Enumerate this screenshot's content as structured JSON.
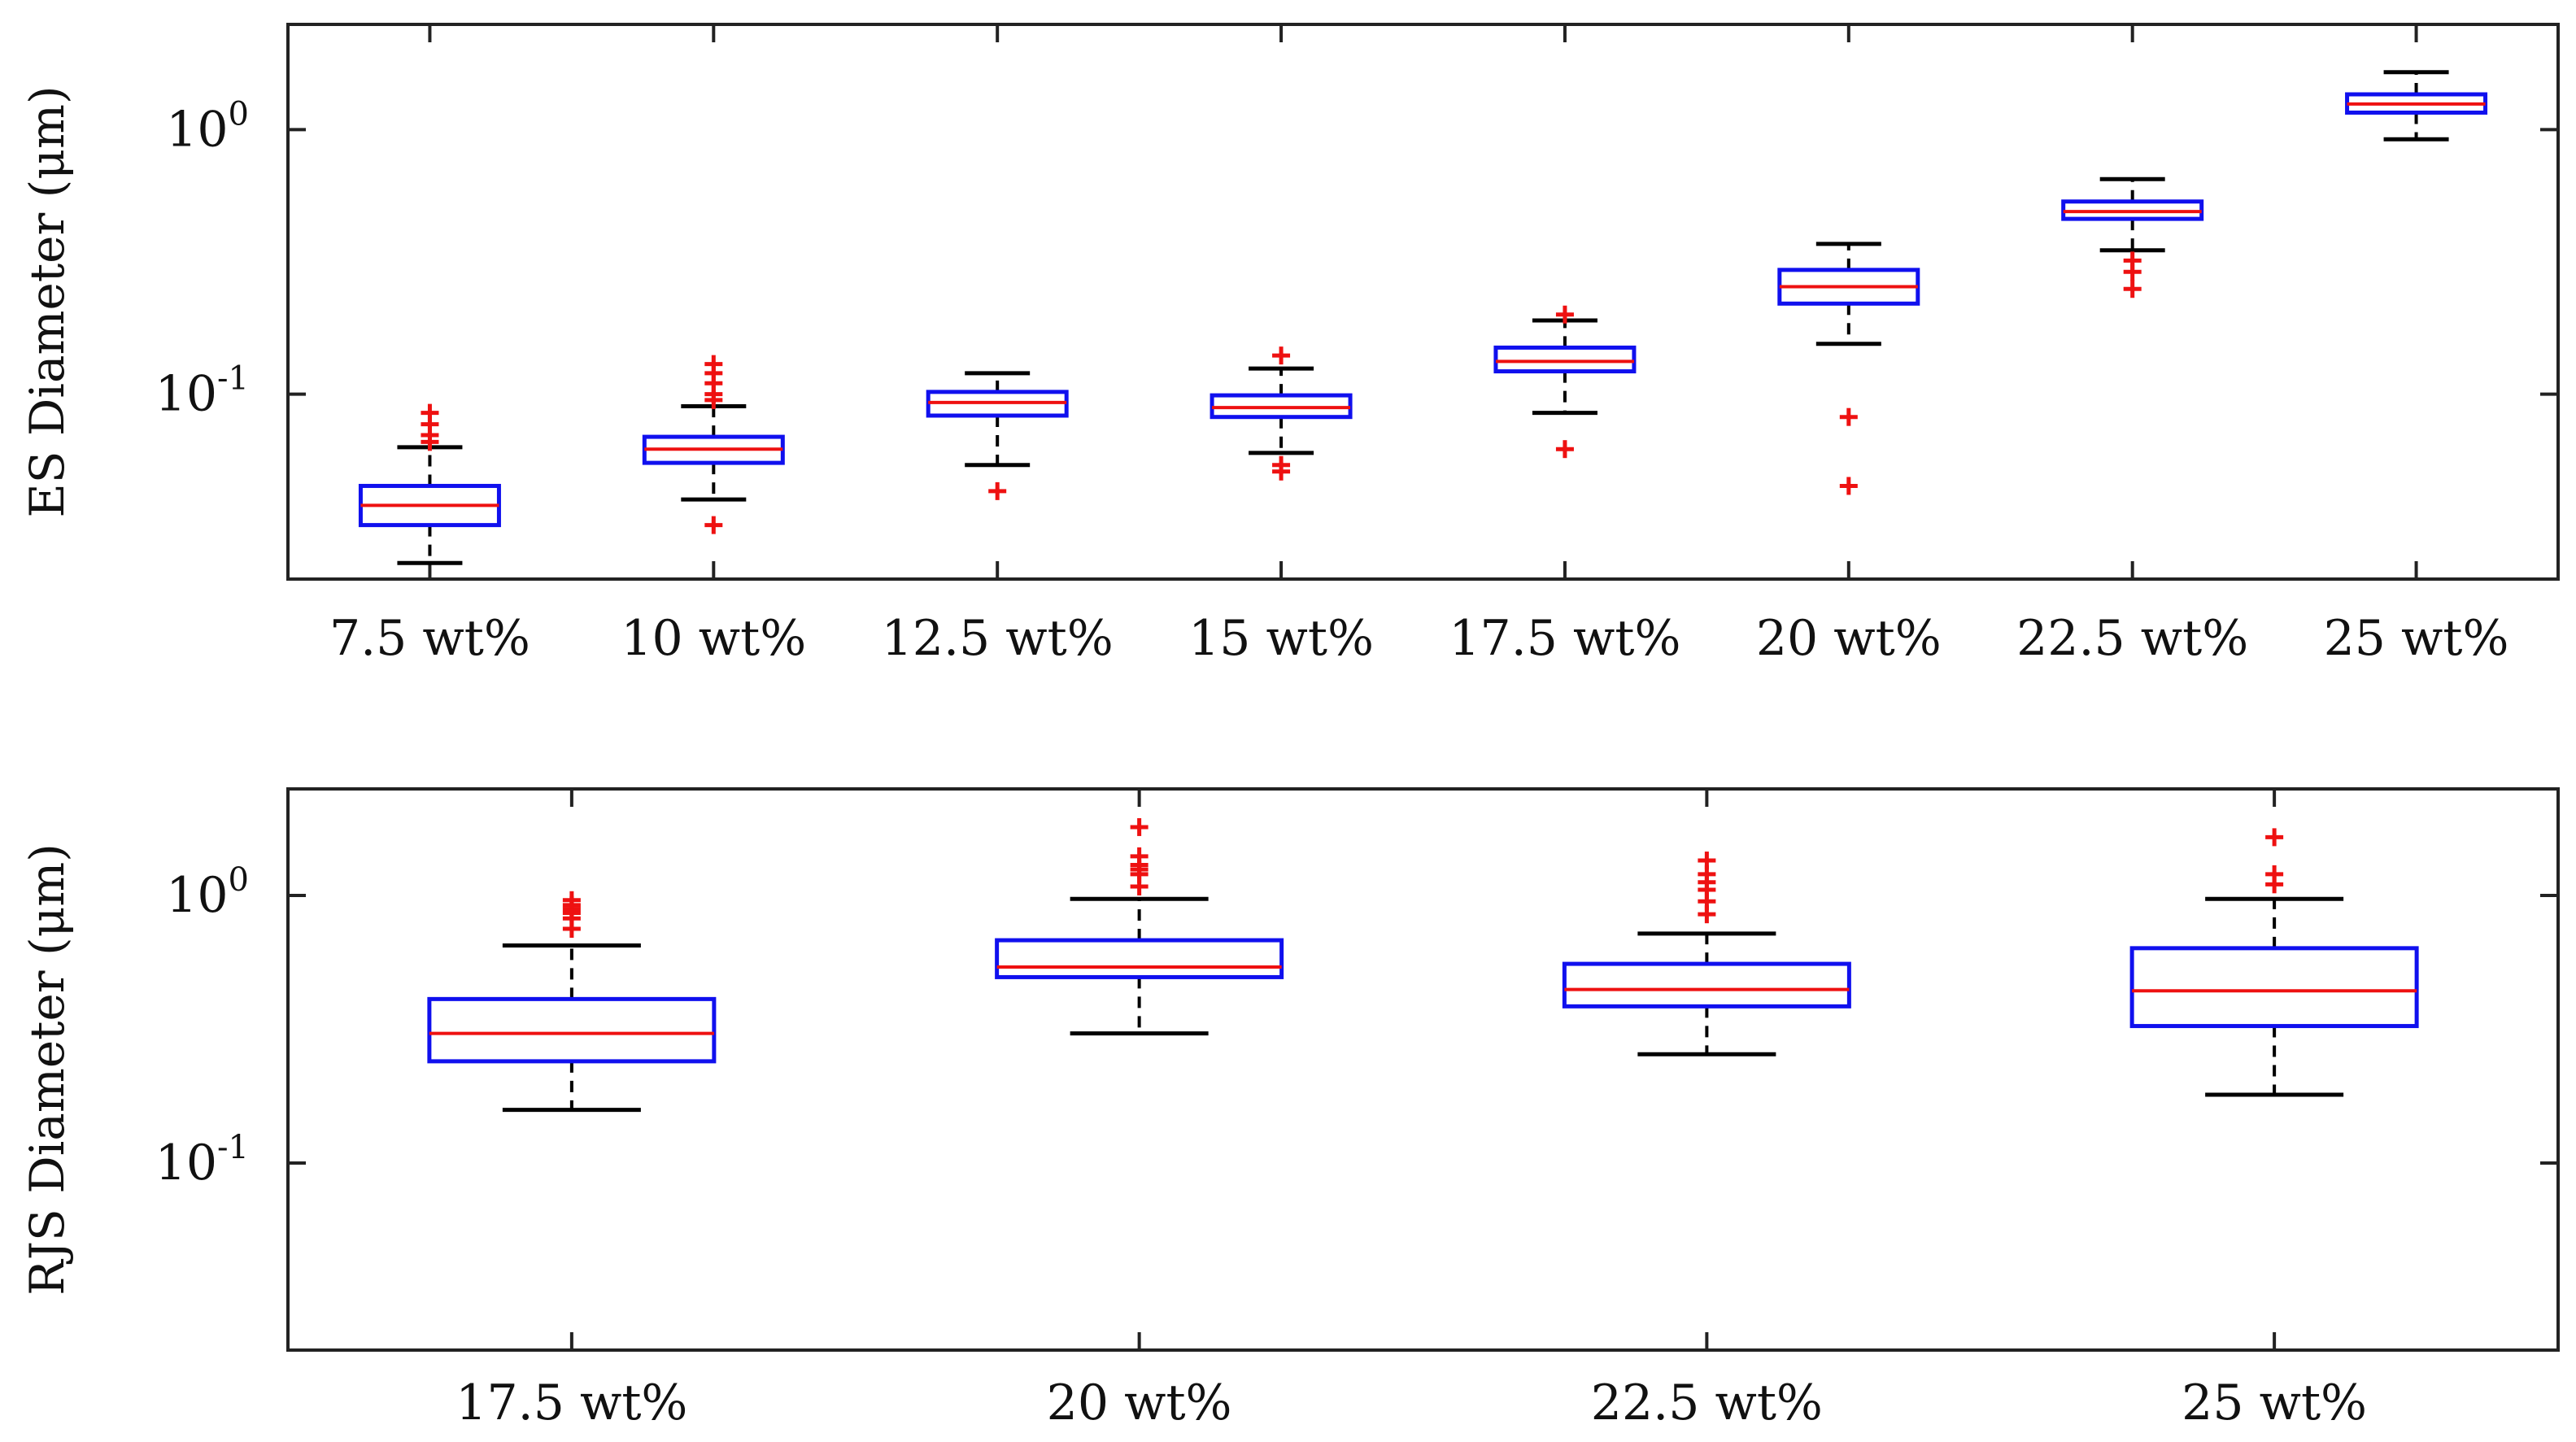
{
  "chart_data": [
    {
      "type": "box",
      "ylabel": "ES Diameter (μm)",
      "yscale": "log",
      "ylim": [
        0.02,
        2.5
      ],
      "yticks": [
        {
          "base": "10",
          "exp": "-1"
        },
        {
          "base": "10",
          "exp": "0"
        }
      ],
      "ytick_values": [
        0.1,
        1
      ],
      "categories": [
        "7.5 wt%",
        "10 wt%",
        "12.5 wt%",
        "15 wt%",
        "17.5 wt%",
        "20 wt%",
        "22.5 wt%",
        "25 wt%"
      ],
      "boxes": [
        {
          "whisker_low": 0.023,
          "q1": 0.032,
          "median": 0.038,
          "q3": 0.045,
          "whisker_high": 0.063,
          "outliers": [
            0.066,
            0.07,
            0.077,
            0.085
          ]
        },
        {
          "whisker_low": 0.04,
          "q1": 0.055,
          "median": 0.062,
          "q3": 0.069,
          "whisker_high": 0.09,
          "outliers": [
            0.032,
            0.095,
            0.1,
            0.11,
            0.12,
            0.13
          ]
        },
        {
          "whisker_low": 0.054,
          "q1": 0.083,
          "median": 0.093,
          "q3": 0.102,
          "whisker_high": 0.12,
          "outliers": [
            0.043
          ]
        },
        {
          "whisker_low": 0.06,
          "q1": 0.082,
          "median": 0.089,
          "q3": 0.099,
          "whisker_high": 0.125,
          "outliers": [
            0.051,
            0.054,
            0.14
          ]
        },
        {
          "whisker_low": 0.085,
          "q1": 0.122,
          "median": 0.133,
          "q3": 0.15,
          "whisker_high": 0.19,
          "outliers": [
            0.062,
            0.2
          ]
        },
        {
          "whisker_low": 0.155,
          "q1": 0.22,
          "median": 0.255,
          "q3": 0.295,
          "whisker_high": 0.37,
          "outliers": [
            0.045,
            0.082
          ]
        },
        {
          "whisker_low": 0.35,
          "q1": 0.46,
          "median": 0.49,
          "q3": 0.535,
          "whisker_high": 0.65,
          "outliers": [
            0.25,
            0.29,
            0.32
          ]
        },
        {
          "whisker_low": 0.92,
          "q1": 1.16,
          "median": 1.25,
          "q3": 1.36,
          "whisker_high": 1.65,
          "outliers": []
        }
      ]
    },
    {
      "type": "box",
      "ylabel": "RJS Diameter (μm)",
      "yscale": "log",
      "ylim": [
        0.02,
        2.5
      ],
      "yticks": [
        {
          "base": "10",
          "exp": "-1"
        },
        {
          "base": "10",
          "exp": "0"
        }
      ],
      "ytick_values": [
        0.1,
        1
      ],
      "categories": [
        "17.5 wt%",
        "20 wt%",
        "22.5 wt%",
        "25 wt%"
      ],
      "boxes": [
        {
          "whisker_low": 0.158,
          "q1": 0.24,
          "median": 0.305,
          "q3": 0.41,
          "whisker_high": 0.65,
          "outliers": [
            0.75,
            0.82,
            0.86,
            0.89,
            0.92,
            0.96
          ]
        },
        {
          "whisker_low": 0.305,
          "q1": 0.495,
          "median": 0.54,
          "q3": 0.68,
          "whisker_high": 0.97,
          "outliers": [
            1.08,
            1.2,
            1.25,
            1.3,
            1.4,
            1.8
          ]
        },
        {
          "whisker_low": 0.255,
          "q1": 0.385,
          "median": 0.445,
          "q3": 0.555,
          "whisker_high": 0.72,
          "outliers": [
            0.85,
            0.95,
            1.05,
            1.12,
            1.2,
            1.35
          ]
        },
        {
          "whisker_low": 0.18,
          "q1": 0.325,
          "median": 0.44,
          "q3": 0.635,
          "whisker_high": 0.97,
          "outliers": [
            1.1,
            1.2,
            1.65
          ]
        }
      ]
    }
  ],
  "colors": {
    "box": "#1010ee",
    "median": "#ee1111",
    "whisker": "#000000",
    "outlier": "#ee1111",
    "axis": "#222222"
  }
}
